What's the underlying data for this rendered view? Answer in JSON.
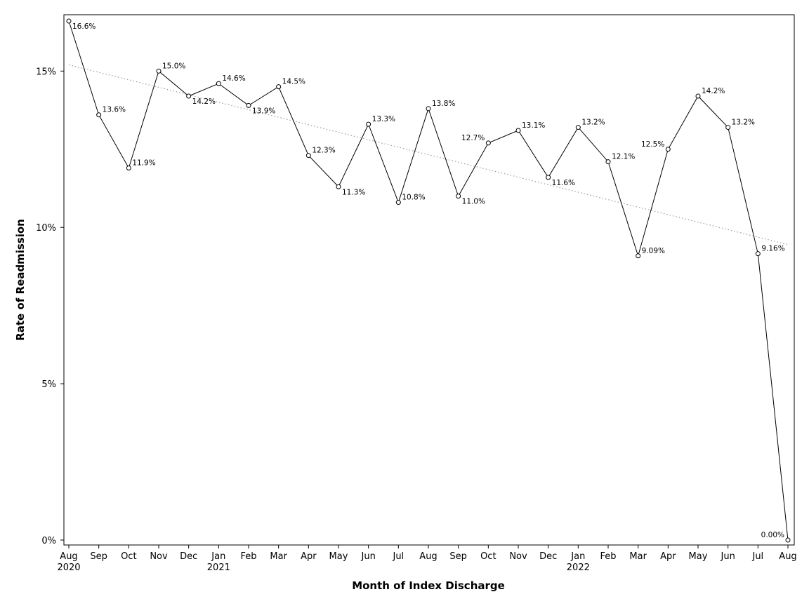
{
  "chart_data": {
    "type": "line",
    "title": "",
    "xlabel": "Month of Index Discharge",
    "ylabel": "Rate of Readmission",
    "ylim": [
      0,
      16.6
    ],
    "y_ticks": [
      0,
      5,
      10,
      15
    ],
    "y_tick_labels": [
      "0%",
      "5%",
      "10%",
      "15%"
    ],
    "x": [
      "Aug",
      "Sep",
      "Oct",
      "Nov",
      "Dec",
      "Jan",
      "Feb",
      "Mar",
      "Apr",
      "May",
      "Jun",
      "Jul",
      "Aug",
      "Sep",
      "Oct",
      "Nov",
      "Dec",
      "Jan",
      "Feb",
      "Mar",
      "Apr",
      "May",
      "Jun",
      "Jul",
      "Aug"
    ],
    "year_labels": [
      {
        "index": 0,
        "label": "2020"
      },
      {
        "index": 5,
        "label": "2021"
      },
      {
        "index": 17,
        "label": "2022"
      }
    ],
    "series": [
      {
        "values": [
          16.6,
          13.6,
          11.9,
          15.0,
          14.2,
          14.6,
          13.9,
          14.5,
          12.3,
          11.3,
          13.3,
          10.8,
          13.8,
          11.0,
          12.7,
          13.1,
          11.6,
          13.2,
          12.1,
          9.09,
          12.5,
          14.2,
          13.2,
          9.16,
          0.0
        ],
        "labels": [
          "16.6%",
          "13.6%",
          "11.9%",
          "15.0%",
          "14.2%",
          "14.6%",
          "13.9%",
          "14.5%",
          "12.3%",
          "11.3%",
          "13.3%",
          "10.8%",
          "13.8%",
          "11.0%",
          "12.7%",
          "13.1%",
          "11.6%",
          "13.2%",
          "12.1%",
          "9.09%",
          "12.5%",
          "14.2%",
          "13.2%",
          "9.16%",
          "0.00%"
        ],
        "label_side": [
          "br",
          "tr",
          "tr",
          "tr",
          "br",
          "tr",
          "br",
          "tr",
          "tr",
          "br",
          "tr",
          "tr",
          "tr",
          "br",
          "tl",
          "tr",
          "br",
          "tr",
          "tr",
          "tr",
          "tl",
          "tr",
          "tr",
          "tr",
          "tl"
        ],
        "color": "#000000",
        "marker": "circle-open"
      }
    ],
    "trendline": {
      "start": 15.2,
      "end": 9.45,
      "style": "dotted",
      "color": "#9a9a9a"
    },
    "grid": false,
    "legend": "none"
  }
}
